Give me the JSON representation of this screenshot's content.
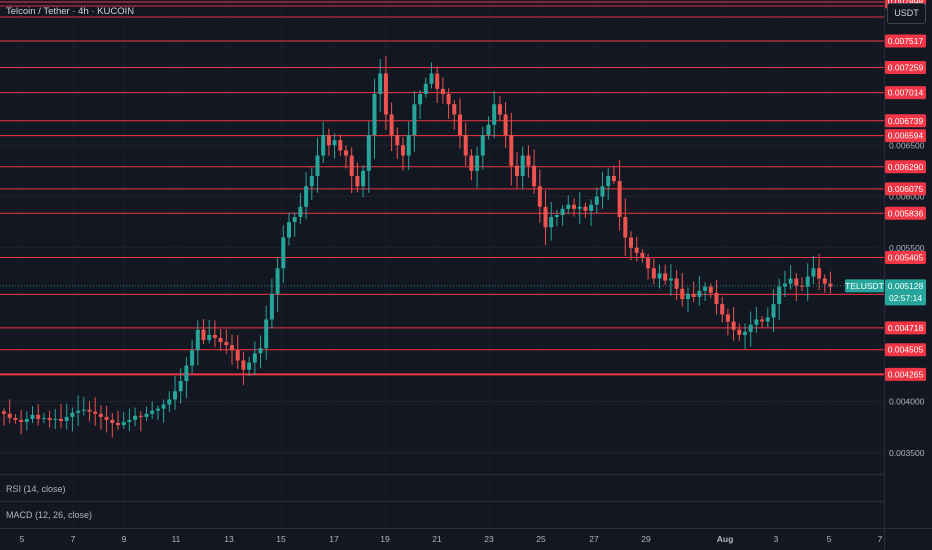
{
  "header": {
    "symbol_title": "Telcoin / Tether · 4h · KUCOIN",
    "currency_button": "USDT"
  },
  "indicators": {
    "rsi_label": "RSI (14, close)",
    "macd_label": "MACD (12, 26, close)"
  },
  "colors": {
    "background": "#131722",
    "level_line": "#f23645",
    "up_candle": "#26a69a",
    "down_candle": "#ef5350",
    "last_price_badge": "#26a69a"
  },
  "last_price": {
    "symbol": "TELUSDT",
    "price": "0.005128",
    "countdown": "02:57:14"
  },
  "chart_data": {
    "type": "candlestick",
    "x_tick_labels": [
      "5",
      "7",
      "9",
      "11",
      "13",
      "15",
      "17",
      "19",
      "21",
      "23",
      "25",
      "27",
      "29",
      "Aug",
      "3",
      "5",
      "7"
    ],
    "y_tick_labels": [
      "0.006500",
      "0.006000",
      "0.005500",
      "0.004000",
      "0.003500"
    ],
    "horizontal_levels": [
      "0.007898",
      "0.007517",
      "0.007259",
      "0.007014",
      "0.006739",
      "0.006594",
      "0.006290",
      "0.006075",
      "0.005836",
      "0.005405",
      "0.005045",
      "0.004718",
      "0.004505",
      "0.004265"
    ],
    "ylim": [
      0.0033,
      0.0081
    ],
    "close_series": [
      0.00388,
      0.00384,
      0.00382,
      0.0038,
      0.00383,
      0.00387,
      0.00383,
      0.00384,
      0.00382,
      0.00383,
      0.00381,
      0.00385,
      0.00389,
      0.00391,
      0.00392,
      0.0039,
      0.00388,
      0.00385,
      0.00382,
      0.00379,
      0.00377,
      0.0038,
      0.00382,
      0.00386,
      0.00385,
      0.00388,
      0.00391,
      0.00393,
      0.00397,
      0.00402,
      0.0041,
      0.0042,
      0.00435,
      0.0045,
      0.0047,
      0.0046,
      0.00465,
      0.00462,
      0.00458,
      0.00455,
      0.0045,
      0.0044,
      0.00431,
      0.00438,
      0.00447,
      0.00452,
      0.0048,
      0.00505,
      0.0053,
      0.0056,
      0.00575,
      0.0058,
      0.0059,
      0.0061,
      0.0062,
      0.0064,
      0.0066,
      0.0065,
      0.00655,
      0.00645,
      0.0064,
      0.0062,
      0.0061,
      0.00625,
      0.0066,
      0.007,
      0.0072,
      0.0068,
      0.0066,
      0.0065,
      0.0064,
      0.0066,
      0.0069,
      0.007,
      0.0071,
      0.0072,
      0.00705,
      0.007,
      0.0069,
      0.0068,
      0.0066,
      0.0064,
      0.00625,
      0.0064,
      0.0066,
      0.0067,
      0.0069,
      0.0068,
      0.0066,
      0.0063,
      0.0062,
      0.0064,
      0.0063,
      0.0061,
      0.0059,
      0.0057,
      0.0058,
      0.00582,
      0.00588,
      0.00592,
      0.00588,
      0.0059,
      0.00586,
      0.00592,
      0.006,
      0.0061,
      0.0062,
      0.00615,
      0.0058,
      0.0056,
      0.0055,
      0.00545,
      0.0054,
      0.0053,
      0.0052,
      0.00525,
      0.00518,
      0.0052,
      0.0051,
      0.005,
      0.00505,
      0.00502,
      0.00508,
      0.00512,
      0.00506,
      0.00495,
      0.00485,
      0.00478,
      0.0047,
      0.00465,
      0.00468,
      0.00475,
      0.0048,
      0.00478,
      0.00482,
      0.00495,
      0.00512,
      0.00515,
      0.0052,
      0.00513,
      0.00512,
      0.00522,
      0.0053,
      0.0052,
      0.00515,
      0.00512
    ]
  }
}
